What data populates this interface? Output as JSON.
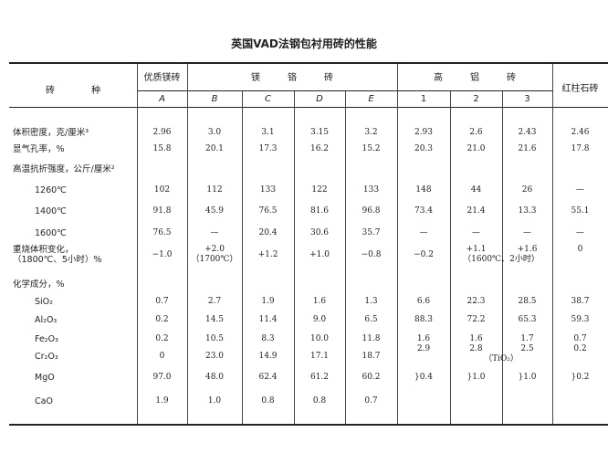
{
  "title": "英国VAD法钢包衬用砖的性能",
  "header": {
    "row_label": "砖　　　　种",
    "groups": [
      "优质镁砖",
      "镁　　　铬　　　砖",
      "高　　　铝　　　砖",
      "红柱石砖"
    ],
    "subcols": [
      "A",
      "B",
      "C",
      "D",
      "E",
      "1",
      "2",
      "3"
    ]
  },
  "rows": [
    {
      "label": "体积密度，克/厘米³",
      "values": [
        "2.96",
        "3.0",
        "3.1",
        "3.15",
        "3.2",
        "2.93",
        "2.6",
        "2.43",
        "2.46"
      ]
    },
    {
      "label": "显气孔率，%",
      "values": [
        "15.8",
        "20.1",
        "17.3",
        "16.2",
        "15.2",
        "20.3",
        "21.0",
        "21.6",
        "17.8"
      ]
    },
    {
      "label": "高温抗折强度，公斤/厘米²",
      "values": [
        "",
        "",
        "",
        "",
        "",
        "",
        "",
        "",
        ""
      ]
    },
    {
      "label": "1260℃",
      "indent": true,
      "values": [
        "102",
        "112",
        "133",
        "122",
        "133",
        "148",
        "44",
        "26",
        "—"
      ]
    },
    {
      "label": "1400℃",
      "indent": true,
      "values": [
        "91.8",
        "45.9",
        "76.5",
        "81.6",
        "96.8",
        "73.4",
        "21.4",
        "13.3",
        "55.1"
      ]
    },
    {
      "label": "1600℃",
      "indent": true,
      "values": [
        "76.5",
        "—",
        "20.4",
        "30.6",
        "35.7",
        "—",
        "—",
        "—",
        "—"
      ]
    },
    {
      "label": "重烧体积变化，",
      "label2": "（1800℃、5小时）%",
      "values": [
        "−1.0",
        "+2.0",
        "+1.2",
        "+1.0",
        "−0.8",
        "−0.2",
        "+1.1",
        "+1.6",
        "0"
      ],
      "notes": {
        "B": "（1700℃）",
        "hl": "（1600℃、2小时）"
      }
    },
    {
      "label": "化学成分，%",
      "values": [
        "",
        "",
        "",
        "",
        "",
        "",
        "",
        "",
        ""
      ]
    },
    {
      "label": "SiO₂",
      "indent": true,
      "values": [
        "0.7",
        "2.7",
        "1.9",
        "1.6",
        "1.3",
        "6.6",
        "22.3",
        "28.5",
        "38.7"
      ]
    },
    {
      "label": "Al₂O₃",
      "indent": true,
      "values": [
        "0.2",
        "14.5",
        "11.4",
        "9.0",
        "6.5",
        "88.3",
        "72.2",
        "65.3",
        "59.3"
      ]
    },
    {
      "label": "Fe₂O₃",
      "indent": true,
      "values": [
        "0.2",
        "10.5",
        "8.3",
        "10.0",
        "11.8",
        "1.6",
        "1.6",
        "1.7",
        "0.7"
      ]
    },
    {
      "label": "Cr₂O₃",
      "indent": true,
      "values": [
        "0",
        "23.0",
        "14.9",
        "17.1",
        "18.7",
        "2.9",
        "2.8",
        "2.5",
        "0.2"
      ],
      "note": "（TiO₂）"
    },
    {
      "label": "MgO",
      "indent": true,
      "values": [
        "97.0",
        "48.0",
        "62.4",
        "61.2",
        "60.2",
        "}0.4",
        "}1.0",
        "}1.0",
        "}0.2"
      ]
    },
    {
      "label": "CaO",
      "indent": true,
      "values": [
        "1.9",
        "1.0",
        "0.8",
        "0.8",
        "0.7",
        "",
        "",
        "",
        ""
      ]
    }
  ]
}
